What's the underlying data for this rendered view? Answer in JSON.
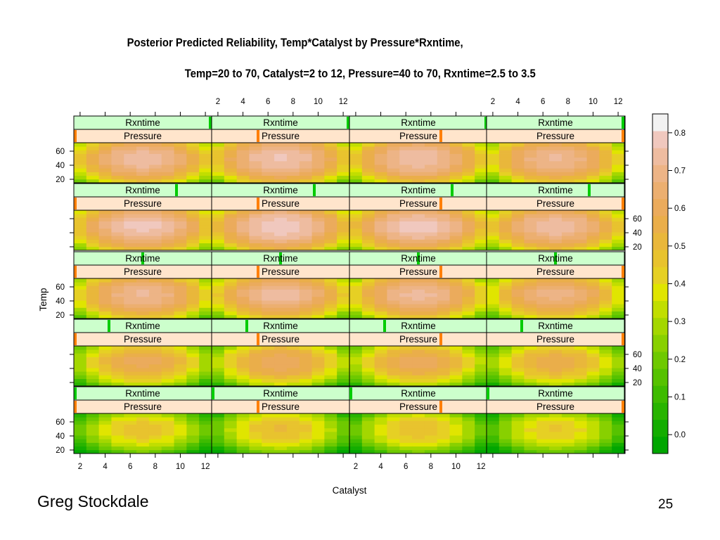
{
  "slide": {
    "title_line1": "Posterior Predicted Reliability, Temp*Catalyst by Pressure*Rxntime,",
    "title_line2": "Temp=20 to 70, Catalyst=2 to 12, Pressure=40 to 70, Rxntime=2.5 to 3.5",
    "author": "Greg Stockdale",
    "page_number": "25"
  },
  "chart_data": {
    "type": "heatmap",
    "layout": "5 rows x 4 columns of panels (trellis)",
    "xlabel": "Catalyst",
    "ylabel": "Temp",
    "x_ticks": [
      2,
      4,
      6,
      8,
      10,
      12
    ],
    "y_ticks": [
      20,
      40,
      60
    ],
    "xlim": [
      1.5,
      12.5
    ],
    "ylim": [
      15,
      72
    ],
    "strip_labels": {
      "rxntime": "Rxntime",
      "pressure": "Pressure"
    },
    "pressure_levels_by_column": [
      40,
      50,
      60,
      70
    ],
    "pressure_range": [
      40,
      70
    ],
    "rxntime_levels_by_row": [
      3.5,
      3.25,
      3.0,
      2.75,
      2.5
    ],
    "rxntime_range": [
      2.5,
      3.5
    ],
    "colorkey": {
      "ticks": [
        0.0,
        0.1,
        0.2,
        0.3,
        0.4,
        0.5,
        0.6,
        0.7,
        0.8
      ],
      "range": [
        -0.05,
        0.85
      ],
      "colors": [
        "#00a600",
        "#13ad00",
        "#28b400",
        "#3ebb00",
        "#56c200",
        "#6ec900",
        "#88d000",
        "#a4d700",
        "#c1de00",
        "#e0e500",
        "#e6d024",
        "#e8c32e",
        "#e9b73b",
        "#eaae4a",
        "#ebab5c",
        "#ecaf70",
        "#edb486",
        "#eebca0",
        "#f0c8be",
        "#f2f2f2"
      ]
    },
    "grid_resolution": {
      "catalyst_cells": 11,
      "temp_cells": 11
    },
    "peak_reliability_by_row": [
      0.77,
      0.8,
      0.74,
      0.62,
      0.5
    ]
  }
}
